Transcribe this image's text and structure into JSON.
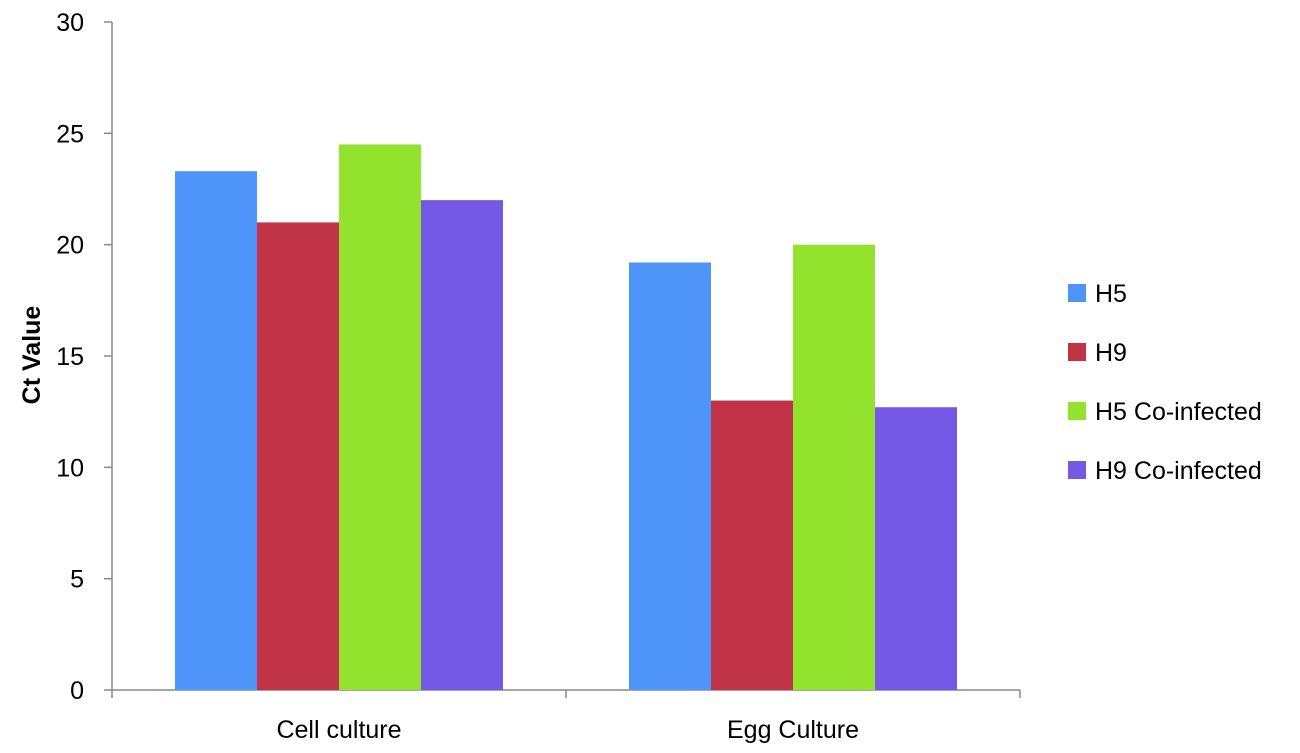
{
  "chart_data": {
    "type": "bar",
    "title": "",
    "xlabel": "",
    "ylabel": "Ct Value",
    "categories": [
      "Cell culture",
      "Egg Culture"
    ],
    "series": [
      {
        "name": "H5",
        "color": "#4f94f8",
        "values": [
          23.3,
          19.2
        ]
      },
      {
        "name": "H9",
        "color": "#c13447",
        "values": [
          21.0,
          13.0
        ]
      },
      {
        "name": "H5 Co-infected",
        "color": "#93e22e",
        "values": [
          24.5,
          20.0
        ]
      },
      {
        "name": "H9 Co-infected",
        "color": "#7458e6",
        "values": [
          22.0,
          12.7
        ]
      }
    ],
    "ylim": [
      0,
      30
    ],
    "yticks": [
      0,
      5,
      10,
      15,
      20,
      25,
      30
    ],
    "grid": false,
    "legend_position": "right"
  }
}
